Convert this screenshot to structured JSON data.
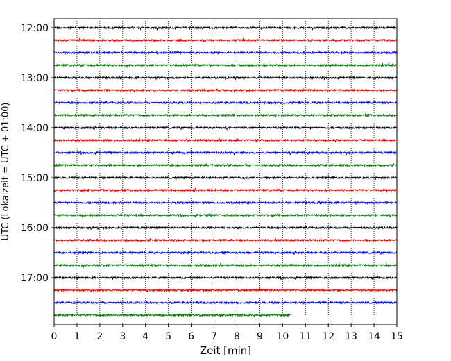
{
  "chart_data": {
    "type": "line",
    "title": "",
    "xlabel": "Zeit  [min]",
    "ylabel": "UTC (Lokalzeit = UTC + 01:00)",
    "xlim": [
      0,
      15
    ],
    "x_ticks": [
      "0",
      "1",
      "2",
      "3",
      "4",
      "5",
      "6",
      "7",
      "8",
      "9",
      "10",
      "11",
      "12",
      "13",
      "14",
      "15"
    ],
    "y_ticks": [
      "12:00",
      "13:00",
      "14:00",
      "15:00",
      "16:00",
      "17:00"
    ],
    "grid": "vertical dotted",
    "trace_interval_min": 15,
    "trace_start": "12:00",
    "trace_color_cycle": [
      "#000000",
      "#ff0000",
      "#0000ff",
      "#008000"
    ],
    "traces": [
      {
        "start": "12:00",
        "end_min": 15
      },
      {
        "start": "12:15",
        "end_min": 15
      },
      {
        "start": "12:30",
        "end_min": 15
      },
      {
        "start": "12:45",
        "end_min": 15
      },
      {
        "start": "13:00",
        "end_min": 15
      },
      {
        "start": "13:15",
        "end_min": 15
      },
      {
        "start": "13:30",
        "end_min": 15
      },
      {
        "start": "13:45",
        "end_min": 15
      },
      {
        "start": "14:00",
        "end_min": 15
      },
      {
        "start": "14:15",
        "end_min": 15
      },
      {
        "start": "14:30",
        "end_min": 15
      },
      {
        "start": "14:45",
        "end_min": 15
      },
      {
        "start": "15:00",
        "end_min": 15
      },
      {
        "start": "15:15",
        "end_min": 15
      },
      {
        "start": "15:30",
        "end_min": 15
      },
      {
        "start": "15:45",
        "end_min": 15
      },
      {
        "start": "16:00",
        "end_min": 15
      },
      {
        "start": "16:15",
        "end_min": 15
      },
      {
        "start": "16:30",
        "end_min": 15
      },
      {
        "start": "16:45",
        "end_min": 15
      },
      {
        "start": "17:00",
        "end_min": 15
      },
      {
        "start": "17:15",
        "end_min": 15
      },
      {
        "start": "17:30",
        "end_min": 15
      },
      {
        "start": "17:45",
        "end_min": 10.35
      }
    ]
  }
}
